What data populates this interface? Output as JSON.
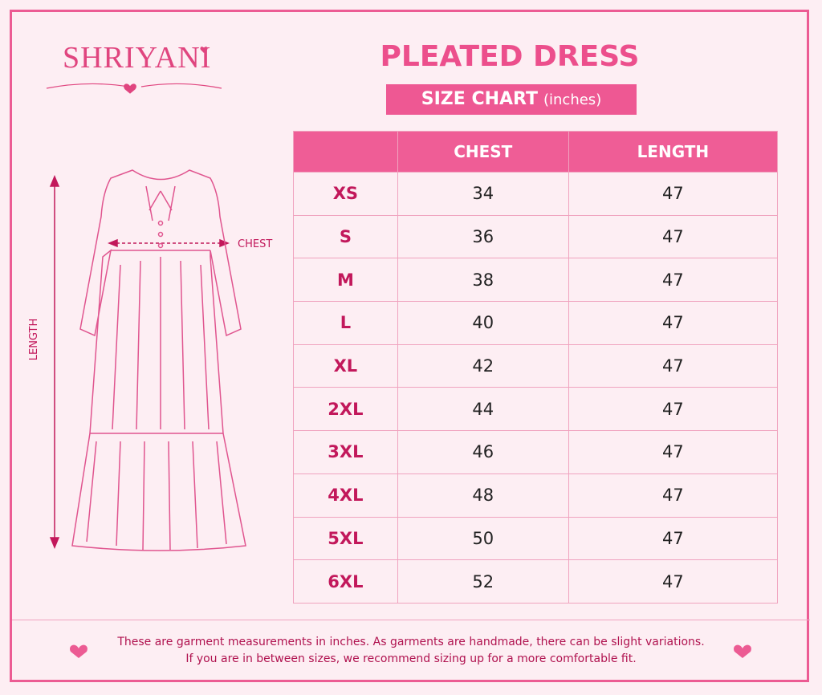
{
  "brand": "SHRIYANI",
  "header": {
    "title": "PLEATED DRESS",
    "subtitle": "SIZE CHART",
    "unit": "(inches)"
  },
  "diagram": {
    "chest_label": "CHEST",
    "length_label": "LENGTH"
  },
  "table": {
    "columns": [
      "CHEST",
      "LENGTH"
    ],
    "rows": [
      [
        "XS",
        34,
        47
      ],
      [
        "S",
        36,
        47
      ],
      [
        "M",
        38,
        47
      ],
      [
        "L",
        40,
        47
      ],
      [
        "XL",
        42,
        47
      ],
      [
        "2XL",
        44,
        47
      ],
      [
        "3XL",
        46,
        47
      ],
      [
        "4XL",
        48,
        47
      ],
      [
        "5XL",
        50,
        47
      ],
      [
        "6XL",
        52,
        47
      ]
    ]
  },
  "footer": {
    "lines": [
      "These are garment measurements in inches. As garments are handmade, there can be slight variations.",
      "If you are in between sizes, we recommend sizing up for a more comfortable fit."
    ]
  }
}
